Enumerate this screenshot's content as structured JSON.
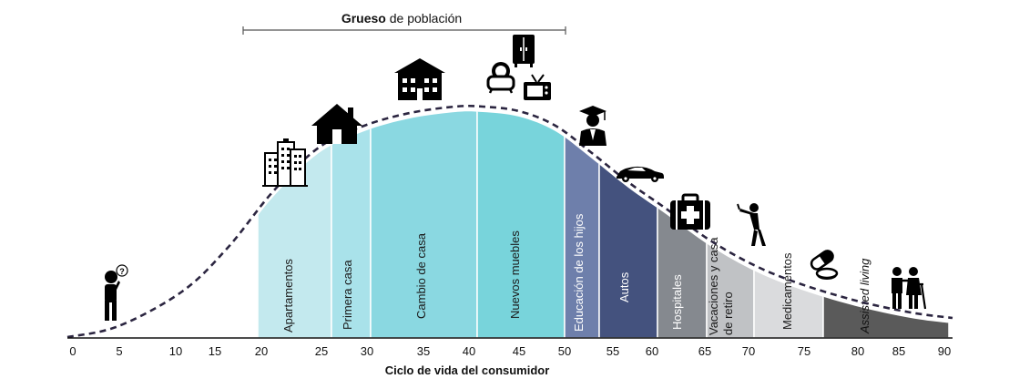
{
  "title": {
    "bold": "Grueso",
    "rest": " de población"
  },
  "xlabel": "Ciclo de vida del consumidor",
  "ticks": [
    0,
    5,
    10,
    15,
    20,
    25,
    30,
    35,
    40,
    45,
    50,
    55,
    60,
    65,
    70,
    75,
    80,
    85,
    90
  ],
  "segments": [
    {
      "label": "Apartamentos",
      "color": "#c3e9ee",
      "text_color": "#1a1a1a"
    },
    {
      "label": "Primera casa",
      "color": "#a9e2ea",
      "text_color": "#1a1a1a"
    },
    {
      "label": "Cambio de casa",
      "color": "#8ad8e1",
      "text_color": "#1a1a1a"
    },
    {
      "label": "Nuevos muebles",
      "color": "#78d4db",
      "text_color": "#1a1a1a"
    },
    {
      "label": "Educación de los hijos",
      "color": "#6e7fab",
      "text_color": "#ffffff"
    },
    {
      "label": "Autos",
      "color": "#44527e",
      "text_color": "#ffffff"
    },
    {
      "label": "Hospitales",
      "color": "#85898f",
      "text_color": "#ffffff"
    },
    {
      "label": "Vacaciones y casa de retiro",
      "label_lines": [
        "Vacaciones y casa",
        "de retiro"
      ],
      "color": "#c0c2c5",
      "text_color": "#1a1a1a"
    },
    {
      "label": "Medicamentos",
      "color": "#dadbdd",
      "text_color": "#1a1a1a"
    },
    {
      "label": "Assisted living",
      "color": "#5a5a5a",
      "text_color": "#111111",
      "italic": true
    }
  ],
  "icons": [
    "person-thinking-icon",
    "buildings-icon",
    "house-icon",
    "apartment-building-icon",
    "armchair-icon",
    "wardrobe-icon",
    "tv-icon",
    "graduate-icon",
    "car-icon",
    "first-aid-kit-icon",
    "golfer-icon",
    "pills-icon",
    "elderly-couple-icon"
  ]
}
